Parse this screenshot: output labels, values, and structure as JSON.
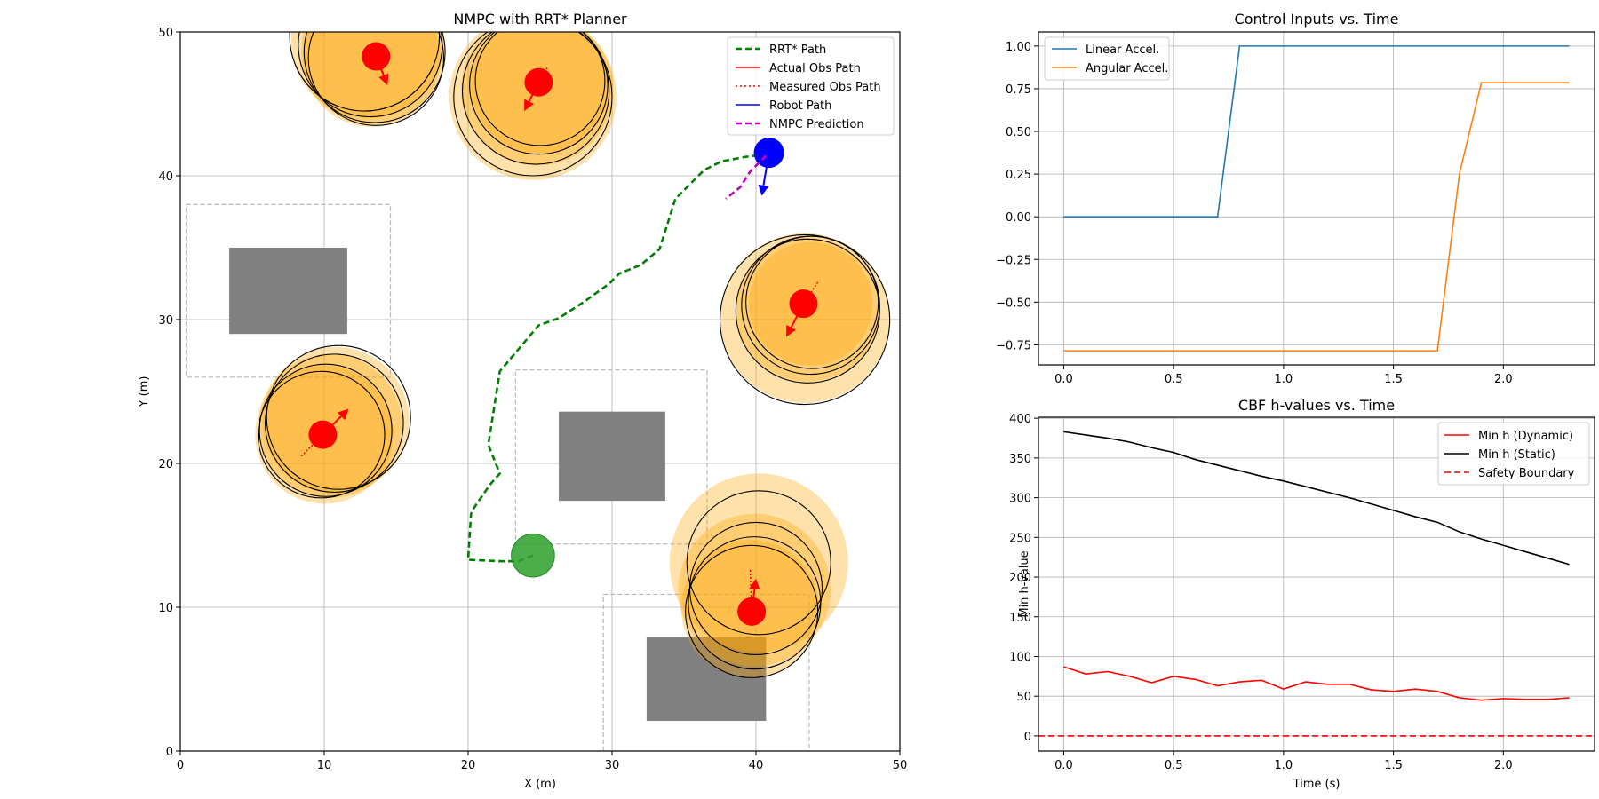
{
  "chart_data": [
    {
      "type": "scatter",
      "title": "NMPC with RRT* Planner",
      "xlabel": "X (m)",
      "ylabel": "Y (m)",
      "xlim": [
        0,
        50
      ],
      "ylim": [
        0,
        50
      ],
      "xticks": [
        0,
        10,
        20,
        30,
        40,
        50
      ],
      "yticks": [
        0,
        10,
        20,
        30,
        40,
        50
      ],
      "grid": true,
      "legend_position": "top-right",
      "legend": [
        {
          "label": "RRT* Path",
          "color": "#008000",
          "style": "dashed-thick"
        },
        {
          "label": "Actual Obs Path",
          "color": "#ff0000",
          "style": "solid"
        },
        {
          "label": "Measured Obs Path",
          "color": "#ff0000",
          "style": "dotted"
        },
        {
          "label": "Robot Path",
          "color": "#0000ff",
          "style": "solid"
        },
        {
          "label": "NMPC Prediction",
          "color": "#bf00bf",
          "style": "dashed-thick"
        }
      ],
      "static_obstacles": [
        {
          "x0": 3.4,
          "y0": 29.0,
          "x1": 11.6,
          "y1": 35.0
        },
        {
          "x0": 26.3,
          "y0": 17.4,
          "x1": 33.7,
          "y1": 23.6
        },
        {
          "x0": 32.4,
          "y0": 2.1,
          "x1": 40.7,
          "y1": 7.9
        }
      ],
      "inflated_zones": [
        {
          "x0": 0.4,
          "y0": 26.0,
          "x1": 14.6,
          "y1": 38.0
        },
        {
          "x0": 23.3,
          "y0": 14.4,
          "x1": 36.6,
          "y1": 26.5
        },
        {
          "x0": 29.4,
          "y0": 0,
          "x1": 43.7,
          "y1": 10.9
        }
      ],
      "rrt_path": {
        "x": [
          24.5,
          23.5,
          22.3,
          20.0,
          20.2,
          20.4,
          21.5,
          22.2,
          21.4,
          22.2,
          24.9,
          26.3,
          28.0,
          29.8,
          30.5,
          32.0,
          33.3,
          34.4,
          36.4,
          37.6,
          39.2,
          40.7
        ],
        "y": [
          13.6,
          13.2,
          13.2,
          13.3,
          16.5,
          16.9,
          18.5,
          19.3,
          21.3,
          26.4,
          29.6,
          30.1,
          31.2,
          32.5,
          33.2,
          33.8,
          34.9,
          38.4,
          40.4,
          41.0,
          41.3,
          41.5
        ]
      },
      "goal": {
        "x": 24.5,
        "y": 13.6,
        "radius": 1.5
      },
      "robot": {
        "x": 40.9,
        "y": 41.6,
        "radius": 1.1,
        "heading": {
          "dx": -0.5,
          "dy": -3.0
        }
      },
      "nmpc_prediction": {
        "x": [
          40.7,
          39.6,
          38.9,
          37.9
        ],
        "y": [
          41.4,
          40.3,
          39.2,
          38.4
        ]
      },
      "dynamic_obstacles": [
        {
          "x": 13.6,
          "y": 48.3,
          "heading": {
            "dx": 0.8,
            "dy": -2.0
          },
          "history": {
            "x": [
              14.2,
              13.6
            ],
            "y": [
              46.9,
              48.3
            ]
          },
          "halos": [
            {
              "cx": 13.0,
              "cy": 49.3,
              "r": 5.3
            },
            {
              "cx": 13.4,
              "cy": 48.6,
              "r": 5.0
            },
            {
              "cx": 13.3,
              "cy": 48.2,
              "r": 4.8
            }
          ],
          "rings": [
            {
              "cx": 12.8,
              "cy": 49.7,
              "r": 5.2
            },
            {
              "cx": 13.2,
              "cy": 49.1,
              "r": 5.0
            },
            {
              "cx": 13.5,
              "cy": 48.6,
              "r": 4.9
            },
            {
              "cx": 13.6,
              "cy": 48.2,
              "r": 4.7
            }
          ]
        },
        {
          "x": 24.9,
          "y": 46.5,
          "heading": {
            "dx": -1.0,
            "dy": -2.0
          },
          "history": {
            "x": [
              25.5,
              24.9
            ],
            "y": [
              47.5,
              46.5
            ]
          },
          "halos": [
            {
              "cx": 24.5,
              "cy": 45.5,
              "r": 5.8
            },
            {
              "cx": 24.8,
              "cy": 46.0,
              "r": 5.3
            },
            {
              "cx": 25.0,
              "cy": 46.3,
              "r": 4.8
            }
          ],
          "rings": [
            {
              "cx": 24.5,
              "cy": 45.5,
              "r": 5.5
            },
            {
              "cx": 24.7,
              "cy": 45.9,
              "r": 5.1
            },
            {
              "cx": 24.9,
              "cy": 46.3,
              "r": 4.8
            },
            {
              "cx": 25.0,
              "cy": 46.6,
              "r": 4.5
            }
          ]
        },
        {
          "x": 43.3,
          "y": 31.1,
          "heading": {
            "dx": -1.2,
            "dy": -2.3
          },
          "history": {
            "x": [
              44.3,
              43.3
            ],
            "y": [
              32.6,
              31.1
            ]
          },
          "halos": [
            {
              "cx": 43.4,
              "cy": 30.1,
              "r": 5.9
            },
            {
              "cx": 43.6,
              "cy": 30.7,
              "r": 5.0
            },
            {
              "cx": 43.8,
              "cy": 31.1,
              "r": 4.3
            }
          ],
          "rings": [
            {
              "cx": 43.4,
              "cy": 30.0,
              "r": 5.9
            },
            {
              "cx": 43.6,
              "cy": 30.6,
              "r": 5.0
            },
            {
              "cx": 43.8,
              "cy": 31.0,
              "r": 4.8
            },
            {
              "cx": 43.9,
              "cy": 31.2,
              "r": 4.6
            }
          ]
        },
        {
          "x": 9.9,
          "y": 22.0,
          "heading": {
            "dx": 1.8,
            "dy": 1.8
          },
          "history": {
            "x": [
              8.4,
              9.9
            ],
            "y": [
              20.5,
              22.0
            ]
          },
          "halos": [
            {
              "cx": 10.8,
              "cy": 23.0,
              "r": 5.1
            },
            {
              "cx": 10.4,
              "cy": 22.6,
              "r": 5.0
            },
            {
              "cx": 10.0,
              "cy": 22.0,
              "r": 4.8
            }
          ],
          "rings": [
            {
              "cx": 11.0,
              "cy": 23.2,
              "r": 5.0
            },
            {
              "cx": 10.7,
              "cy": 22.8,
              "r": 4.8
            },
            {
              "cx": 10.1,
              "cy": 22.3,
              "r": 4.6
            },
            {
              "cx": 9.8,
              "cy": 22.0,
              "r": 4.4
            }
          ]
        },
        {
          "x": 39.7,
          "y": 9.7,
          "heading": {
            "dx": 0.3,
            "dy": 2.3
          },
          "history": {
            "x": [
              39.6,
              39.7
            ],
            "y": [
              12.6,
              9.7
            ]
          },
          "halos": [
            {
              "cx": 40.2,
              "cy": 13.1,
              "r": 6.2
            },
            {
              "cx": 39.9,
              "cy": 11.2,
              "r": 5.3
            },
            {
              "cx": 39.6,
              "cy": 9.9,
              "r": 4.8
            }
          ],
          "rings": [
            {
              "cx": 40.2,
              "cy": 13.1,
              "r": 5.0
            },
            {
              "cx": 40.0,
              "cy": 11.3,
              "r": 4.6
            },
            {
              "cx": 39.9,
              "cy": 10.3,
              "r": 4.6
            },
            {
              "cx": 39.7,
              "cy": 9.7,
              "r": 4.6
            }
          ]
        }
      ]
    },
    {
      "type": "line",
      "title": "Control Inputs vs. Time",
      "xlabel": "",
      "ylabel": "",
      "xlim": [
        -0.115,
        2.415
      ],
      "ylim": [
        -0.8675,
        1.0825
      ],
      "xticks": [
        0.0,
        0.5,
        1.0,
        1.5,
        2.0
      ],
      "xtick_labels": [
        "0.0",
        "0.5",
        "1.0",
        "1.5",
        "2.0"
      ],
      "yticks": [
        -0.75,
        -0.5,
        -0.25,
        0.0,
        0.25,
        0.5,
        0.75,
        1.0
      ],
      "ytick_labels": [
        "−0.75",
        "−0.50",
        "−0.25",
        "0.00",
        "0.25",
        "0.50",
        "0.75",
        "1.00"
      ],
      "grid": true,
      "legend_position": "top-left",
      "series": [
        {
          "name": "Linear Accel.",
          "color": "#1f77b4",
          "x": [
            0.0,
            0.1,
            0.2,
            0.3,
            0.4,
            0.5,
            0.6,
            0.7,
            0.8,
            0.9,
            1.0,
            1.1,
            1.2,
            1.3,
            1.4,
            1.5,
            1.6,
            1.7,
            1.8,
            1.9,
            2.0,
            2.1,
            2.2,
            2.3
          ],
          "y": [
            0,
            0,
            0,
            0,
            0,
            0,
            0,
            0,
            1,
            1,
            1,
            1,
            1,
            1,
            1,
            1,
            1,
            1,
            1,
            1,
            1,
            1,
            1,
            1
          ]
        },
        {
          "name": "Angular Accel.",
          "color": "#ff7f0e",
          "x": [
            0.0,
            0.1,
            0.2,
            0.3,
            0.4,
            0.5,
            0.6,
            0.7,
            0.8,
            0.9,
            1.0,
            1.1,
            1.2,
            1.3,
            1.4,
            1.5,
            1.6,
            1.7,
            1.8,
            1.9,
            2.0,
            2.1,
            2.2,
            2.3
          ],
          "y": [
            -0.785,
            -0.785,
            -0.785,
            -0.785,
            -0.785,
            -0.785,
            -0.785,
            -0.785,
            -0.785,
            -0.785,
            -0.785,
            -0.785,
            -0.785,
            -0.785,
            -0.785,
            -0.785,
            -0.785,
            -0.785,
            0.25,
            0.785,
            0.785,
            0.785,
            0.785,
            0.785
          ]
        }
      ]
    },
    {
      "type": "line",
      "title": "CBF h-values vs. Time",
      "xlabel": "Time (s)",
      "ylabel": "Min h-value",
      "xlim": [
        -0.115,
        2.415
      ],
      "ylim": [
        -19.1,
        401.3
      ],
      "xticks": [
        0.0,
        0.5,
        1.0,
        1.5,
        2.0
      ],
      "xtick_labels": [
        "0.0",
        "0.5",
        "1.0",
        "1.5",
        "2.0"
      ],
      "yticks": [
        0,
        50,
        100,
        150,
        200,
        250,
        300,
        350,
        400
      ],
      "ytick_labels": [
        "0",
        "50",
        "100",
        "150",
        "200",
        "250",
        "300",
        "350",
        "400"
      ],
      "grid": true,
      "legend_position": "top-right",
      "series": [
        {
          "name": "Min h (Dynamic)",
          "color": "#ff0000",
          "style": "solid",
          "x": [
            0.0,
            0.1,
            0.2,
            0.3,
            0.4,
            0.5,
            0.6,
            0.7,
            0.8,
            0.9,
            1.0,
            1.1,
            1.2,
            1.3,
            1.4,
            1.5,
            1.6,
            1.7,
            1.8,
            1.9,
            2.0,
            2.1,
            2.2,
            2.3
          ],
          "y": [
            87,
            78,
            81,
            75,
            67,
            75,
            71,
            63,
            68,
            70,
            59,
            68,
            65,
            65,
            58,
            56,
            59,
            56,
            48,
            45,
            47,
            46,
            46,
            48
          ]
        },
        {
          "name": "Min h (Static)",
          "color": "#000000",
          "style": "solid",
          "x": [
            0.0,
            0.1,
            0.2,
            0.3,
            0.4,
            0.5,
            0.6,
            0.7,
            0.8,
            0.9,
            1.0,
            1.1,
            1.2,
            1.3,
            1.4,
            1.5,
            1.6,
            1.7,
            1.8,
            1.9,
            2.0,
            2.1,
            2.2,
            2.3
          ],
          "y": [
            383,
            379,
            375,
            370,
            363,
            357,
            348,
            341,
            334,
            327,
            321,
            314,
            307,
            300,
            292,
            284,
            276,
            269,
            257,
            248,
            240,
            232,
            224,
            216
          ]
        },
        {
          "name": "Safety Boundary",
          "color": "#ff0000",
          "style": "dashed",
          "hline": 0
        }
      ]
    }
  ]
}
